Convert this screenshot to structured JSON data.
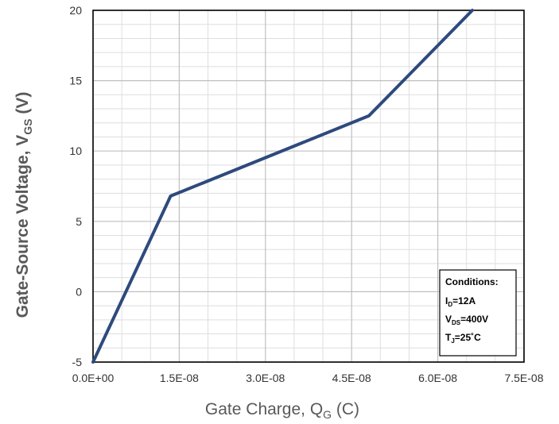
{
  "chart_data": {
    "type": "line",
    "xlabel": {
      "main": "Gate Charge, Q",
      "sub": "G",
      "unit": " (C)"
    },
    "ylabel": {
      "main": "Gate-Source Voltage, V",
      "sub": "GS",
      "unit": " (V)"
    },
    "xlim": [
      0,
      7.5e-08
    ],
    "ylim": [
      -5,
      20
    ],
    "x_ticks": [
      0,
      1.5e-08,
      3e-08,
      4.5e-08,
      6e-08,
      7.5e-08
    ],
    "x_tick_labels": [
      "0.0E+00",
      "1.5E-08",
      "3.0E-08",
      "4.5E-08",
      "6.0E-08",
      "7.5E-08"
    ],
    "y_ticks": [
      -5,
      0,
      5,
      10,
      15,
      20
    ],
    "y_tick_labels": [
      "-5",
      "0",
      "5",
      "10",
      "15",
      "20"
    ],
    "minor_x_step": 5e-09,
    "minor_y_step": 1,
    "grid": true,
    "x": [
      0,
      1.35e-08,
      4.8e-08,
      6.6e-08
    ],
    "y": [
      -5,
      6.8,
      12.5,
      20
    ],
    "colors": {
      "line": "#2e4a7d"
    },
    "annotation": {
      "title": "Conditions:",
      "lines": [
        {
          "main": "I",
          "sub": "D",
          "rest": "=12A"
        },
        {
          "main": "V",
          "sub": "DS",
          "rest": "=400V"
        },
        {
          "main": "T",
          "sub": "J",
          "rest": "=25˚C"
        }
      ],
      "placement": "bottom-right"
    }
  }
}
